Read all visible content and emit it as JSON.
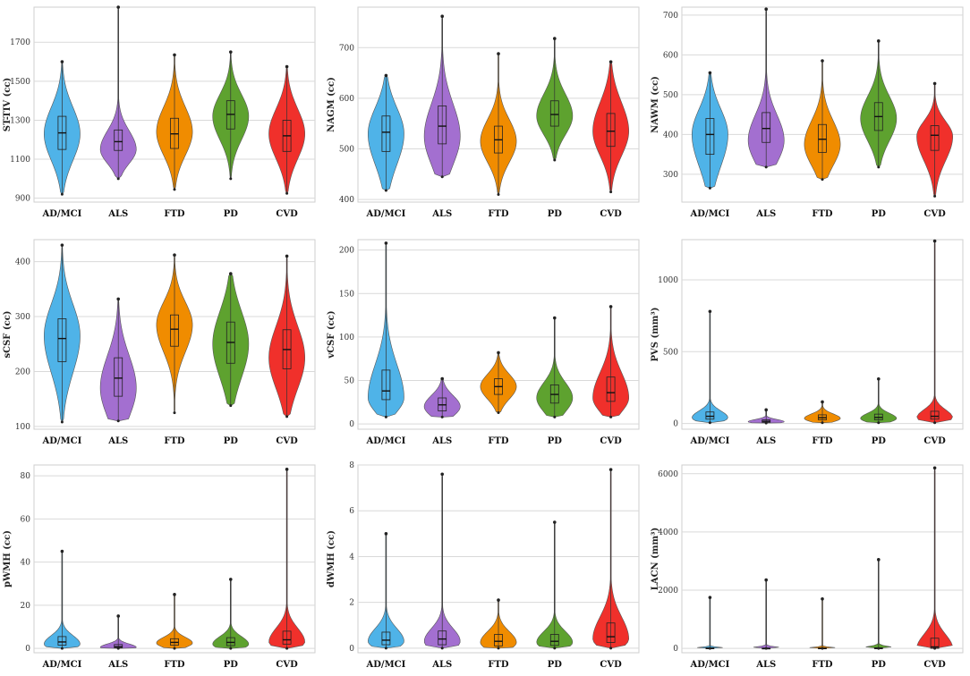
{
  "figure_title": "",
  "chart_data": [
    {
      "type": "violin",
      "id": "st-tiv",
      "ylabel": "ST-TIV (cc)",
      "ylim": [
        880,
        1880
      ],
      "yticks": [
        900,
        1100,
        1300,
        1500,
        1700
      ],
      "categories": [
        "AD/MCI",
        "ALS",
        "FTD",
        "PD",
        "CVD"
      ],
      "colors": [
        "#4fb3e8",
        "#a36fd0",
        "#f08c00",
        "#5ea22f",
        "#f0302b"
      ],
      "series": [
        {
          "name": "AD/MCI",
          "min": 920,
          "q1": 1150,
          "median": 1235,
          "q3": 1320,
          "max": 1600,
          "mode": 1230
        },
        {
          "name": "ALS",
          "min": 1000,
          "q1": 1145,
          "median": 1190,
          "q3": 1250,
          "max": 1880,
          "mode": 1150
        },
        {
          "name": "FTD",
          "min": 945,
          "q1": 1155,
          "median": 1230,
          "q3": 1310,
          "max": 1635,
          "mode": 1240
        },
        {
          "name": "PD",
          "min": 1000,
          "q1": 1255,
          "median": 1330,
          "q3": 1400,
          "max": 1650,
          "mode": 1320
        },
        {
          "name": "CVD",
          "min": 925,
          "q1": 1140,
          "median": 1220,
          "q3": 1300,
          "max": 1575,
          "mode": 1230
        }
      ]
    },
    {
      "type": "violin",
      "id": "nagm",
      "ylabel": "NAGM (cc)",
      "ylim": [
        395,
        780
      ],
      "yticks": [
        400,
        500,
        600,
        700
      ],
      "categories": [
        "AD/MCI",
        "ALS",
        "FTD",
        "PD",
        "CVD"
      ],
      "colors": [
        "#4fb3e8",
        "#a36fd0",
        "#f08c00",
        "#5ea22f",
        "#f0302b"
      ],
      "series": [
        {
          "name": "AD/MCI",
          "min": 418,
          "q1": 495,
          "median": 533,
          "q3": 565,
          "max": 645,
          "mode": 530
        },
        {
          "name": "ALS",
          "min": 445,
          "q1": 510,
          "median": 545,
          "q3": 585,
          "max": 762,
          "mode": 525
        },
        {
          "name": "FTD",
          "min": 410,
          "q1": 492,
          "median": 518,
          "q3": 545,
          "max": 688,
          "mode": 515
        },
        {
          "name": "PD",
          "min": 478,
          "q1": 545,
          "median": 568,
          "q3": 595,
          "max": 718,
          "mode": 565
        },
        {
          "name": "CVD",
          "min": 415,
          "q1": 505,
          "median": 535,
          "q3": 570,
          "max": 672,
          "mode": 535
        }
      ]
    },
    {
      "type": "violin",
      "id": "nawm",
      "ylabel": "NAWM (cc)",
      "ylim": [
        230,
        720
      ],
      "yticks": [
        300,
        400,
        500,
        600,
        700
      ],
      "categories": [
        "AD/MCI",
        "ALS",
        "FTD",
        "PD",
        "CVD"
      ],
      "colors": [
        "#4fb3e8",
        "#a36fd0",
        "#f08c00",
        "#5ea22f",
        "#f0302b"
      ],
      "series": [
        {
          "name": "AD/MCI",
          "min": 265,
          "q1": 350,
          "median": 400,
          "q3": 440,
          "max": 555,
          "mode": 400
        },
        {
          "name": "ALS",
          "min": 318,
          "q1": 380,
          "median": 415,
          "q3": 455,
          "max": 715,
          "mode": 385
        },
        {
          "name": "FTD",
          "min": 287,
          "q1": 355,
          "median": 388,
          "q3": 425,
          "max": 585,
          "mode": 375
        },
        {
          "name": "PD",
          "min": 318,
          "q1": 410,
          "median": 445,
          "q3": 480,
          "max": 635,
          "mode": 440
        },
        {
          "name": "CVD",
          "min": 245,
          "q1": 360,
          "median": 398,
          "q3": 422,
          "max": 528,
          "mode": 395
        }
      ]
    },
    {
      "type": "violin",
      "id": "scsf",
      "ylabel": "sCSF (cc)",
      "ylim": [
        95,
        440
      ],
      "yticks": [
        100,
        200,
        300,
        400
      ],
      "categories": [
        "AD/MCI",
        "ALS",
        "FTD",
        "PD",
        "CVD"
      ],
      "colors": [
        "#4fb3e8",
        "#a36fd0",
        "#f08c00",
        "#5ea22f",
        "#f0302b"
      ],
      "series": [
        {
          "name": "AD/MCI",
          "min": 108,
          "q1": 218,
          "median": 260,
          "q3": 296,
          "max": 430,
          "mode": 265
        },
        {
          "name": "ALS",
          "min": 110,
          "q1": 155,
          "median": 188,
          "q3": 225,
          "max": 332,
          "mode": 170
        },
        {
          "name": "FTD",
          "min": 125,
          "q1": 246,
          "median": 277,
          "q3": 303,
          "max": 412,
          "mode": 285
        },
        {
          "name": "PD",
          "min": 138,
          "q1": 215,
          "median": 253,
          "q3": 290,
          "max": 378,
          "mode": 250
        },
        {
          "name": "CVD",
          "min": 118,
          "q1": 205,
          "median": 240,
          "q3": 276,
          "max": 410,
          "mode": 225
        }
      ]
    },
    {
      "type": "violin",
      "id": "vcsf",
      "ylabel": "vCSF (cc)",
      "ylim": [
        -6,
        212
      ],
      "yticks": [
        0,
        50,
        100,
        150,
        200
      ],
      "categories": [
        "AD/MCI",
        "ALS",
        "FTD",
        "PD",
        "CVD"
      ],
      "colors": [
        "#4fb3e8",
        "#a36fd0",
        "#f08c00",
        "#5ea22f",
        "#f0302b"
      ],
      "series": [
        {
          "name": "AD/MCI",
          "min": 8,
          "q1": 28,
          "median": 38,
          "q3": 62,
          "max": 208,
          "mode": 30
        },
        {
          "name": "ALS",
          "min": 8,
          "q1": 15,
          "median": 22,
          "q3": 30,
          "max": 52,
          "mode": 20
        },
        {
          "name": "FTD",
          "min": 13,
          "q1": 34,
          "median": 43,
          "q3": 52,
          "max": 82,
          "mode": 43
        },
        {
          "name": "PD",
          "min": 8,
          "q1": 24,
          "median": 34,
          "q3": 45,
          "max": 122,
          "mode": 30
        },
        {
          "name": "CVD",
          "min": 8,
          "q1": 26,
          "median": 36,
          "q3": 54,
          "max": 135,
          "mode": 30
        }
      ]
    },
    {
      "type": "violin",
      "id": "pvs",
      "ylabel": "PVS (mm³)",
      "ylim": [
        -40,
        1280
      ],
      "yticks": [
        0,
        500,
        1000
      ],
      "categories": [
        "AD/MCI",
        "ALS",
        "FTD",
        "PD",
        "CVD"
      ],
      "colors": [
        "#4fb3e8",
        "#a36fd0",
        "#f08c00",
        "#5ea22f",
        "#f0302b"
      ],
      "series": [
        {
          "name": "AD/MCI",
          "min": 5,
          "q1": 30,
          "median": 50,
          "q3": 80,
          "max": 780,
          "mode": 40
        },
        {
          "name": "ALS",
          "min": 3,
          "q1": 8,
          "median": 15,
          "q3": 25,
          "max": 95,
          "mode": 12
        },
        {
          "name": "FTD",
          "min": 5,
          "q1": 25,
          "median": 40,
          "q3": 60,
          "max": 150,
          "mode": 35
        },
        {
          "name": "PD",
          "min": 5,
          "q1": 25,
          "median": 42,
          "q3": 65,
          "max": 310,
          "mode": 35
        },
        {
          "name": "CVD",
          "min": 5,
          "q1": 30,
          "median": 50,
          "q3": 85,
          "max": 1270,
          "mode": 40
        }
      ]
    },
    {
      "type": "violin",
      "id": "pwmh",
      "ylabel": "pWMH (cc)",
      "ylim": [
        -2,
        85
      ],
      "yticks": [
        0,
        20,
        40,
        60,
        80
      ],
      "categories": [
        "AD/MCI",
        "ALS",
        "FTD",
        "PD",
        "CVD"
      ],
      "colors": [
        "#4fb3e8",
        "#a36fd0",
        "#f08c00",
        "#5ea22f",
        "#f0302b"
      ],
      "series": [
        {
          "name": "AD/MCI",
          "min": 0,
          "q1": 1.5,
          "median": 3,
          "q3": 5.5,
          "max": 45,
          "mode": 2
        },
        {
          "name": "ALS",
          "min": 0,
          "q1": 0.3,
          "median": 0.8,
          "q3": 1.8,
          "max": 15,
          "mode": 0.5
        },
        {
          "name": "FTD",
          "min": 0,
          "q1": 1.5,
          "median": 2.8,
          "q3": 4.5,
          "max": 25,
          "mode": 2.5
        },
        {
          "name": "PD",
          "min": 0,
          "q1": 1.3,
          "median": 2.8,
          "q3": 5,
          "max": 32,
          "mode": 2
        },
        {
          "name": "CVD",
          "min": 0,
          "q1": 2,
          "median": 4,
          "q3": 8,
          "max": 83,
          "mode": 3
        }
      ]
    },
    {
      "type": "violin",
      "id": "dwmh",
      "ylabel": "dWMH (cc)",
      "ylim": [
        -0.2,
        8
      ],
      "yticks": [
        0,
        2,
        4,
        6,
        8
      ],
      "categories": [
        "AD/MCI",
        "ALS",
        "FTD",
        "PD",
        "CVD"
      ],
      "colors": [
        "#4fb3e8",
        "#a36fd0",
        "#f08c00",
        "#5ea22f",
        "#f0302b"
      ],
      "series": [
        {
          "name": "AD/MCI",
          "min": 0,
          "q1": 0.15,
          "median": 0.35,
          "q3": 0.7,
          "max": 5,
          "mode": 0.3
        },
        {
          "name": "ALS",
          "min": 0,
          "q1": 0.15,
          "median": 0.4,
          "q3": 0.75,
          "max": 7.6,
          "mode": 0.3
        },
        {
          "name": "FTD",
          "min": 0,
          "q1": 0.1,
          "median": 0.3,
          "q3": 0.6,
          "max": 2.1,
          "mode": 0.25
        },
        {
          "name": "PD",
          "min": 0,
          "q1": 0.12,
          "median": 0.3,
          "q3": 0.6,
          "max": 5.5,
          "mode": 0.25
        },
        {
          "name": "CVD",
          "min": 0,
          "q1": 0.25,
          "median": 0.5,
          "q3": 1.1,
          "max": 7.8,
          "mode": 0.4
        }
      ]
    },
    {
      "type": "violin",
      "id": "lacn",
      "ylabel": "LACN (mm³)",
      "ylim": [
        -150,
        6300
      ],
      "yticks": [
        0,
        2000,
        4000,
        6000
      ],
      "categories": [
        "AD/MCI",
        "ALS",
        "FTD",
        "PD",
        "CVD"
      ],
      "colors": [
        "#4fb3e8",
        "#a36fd0",
        "#f08c00",
        "#5ea22f",
        "#f0302b"
      ],
      "series": [
        {
          "name": "AD/MCI",
          "min": 0,
          "q1": 0,
          "median": 0,
          "q3": 20,
          "max": 1750,
          "mode": 0
        },
        {
          "name": "ALS",
          "min": 0,
          "q1": 0,
          "median": 0,
          "q3": 10,
          "max": 2350,
          "mode": 0
        },
        {
          "name": "FTD",
          "min": 0,
          "q1": 0,
          "median": 0,
          "q3": 15,
          "max": 1700,
          "mode": 0
        },
        {
          "name": "PD",
          "min": 0,
          "q1": 0,
          "median": 0,
          "q3": 20,
          "max": 3050,
          "mode": 0
        },
        {
          "name": "CVD",
          "min": 0,
          "q1": 0,
          "median": 50,
          "q3": 350,
          "max": 6200,
          "mode": 0
        }
      ]
    }
  ]
}
